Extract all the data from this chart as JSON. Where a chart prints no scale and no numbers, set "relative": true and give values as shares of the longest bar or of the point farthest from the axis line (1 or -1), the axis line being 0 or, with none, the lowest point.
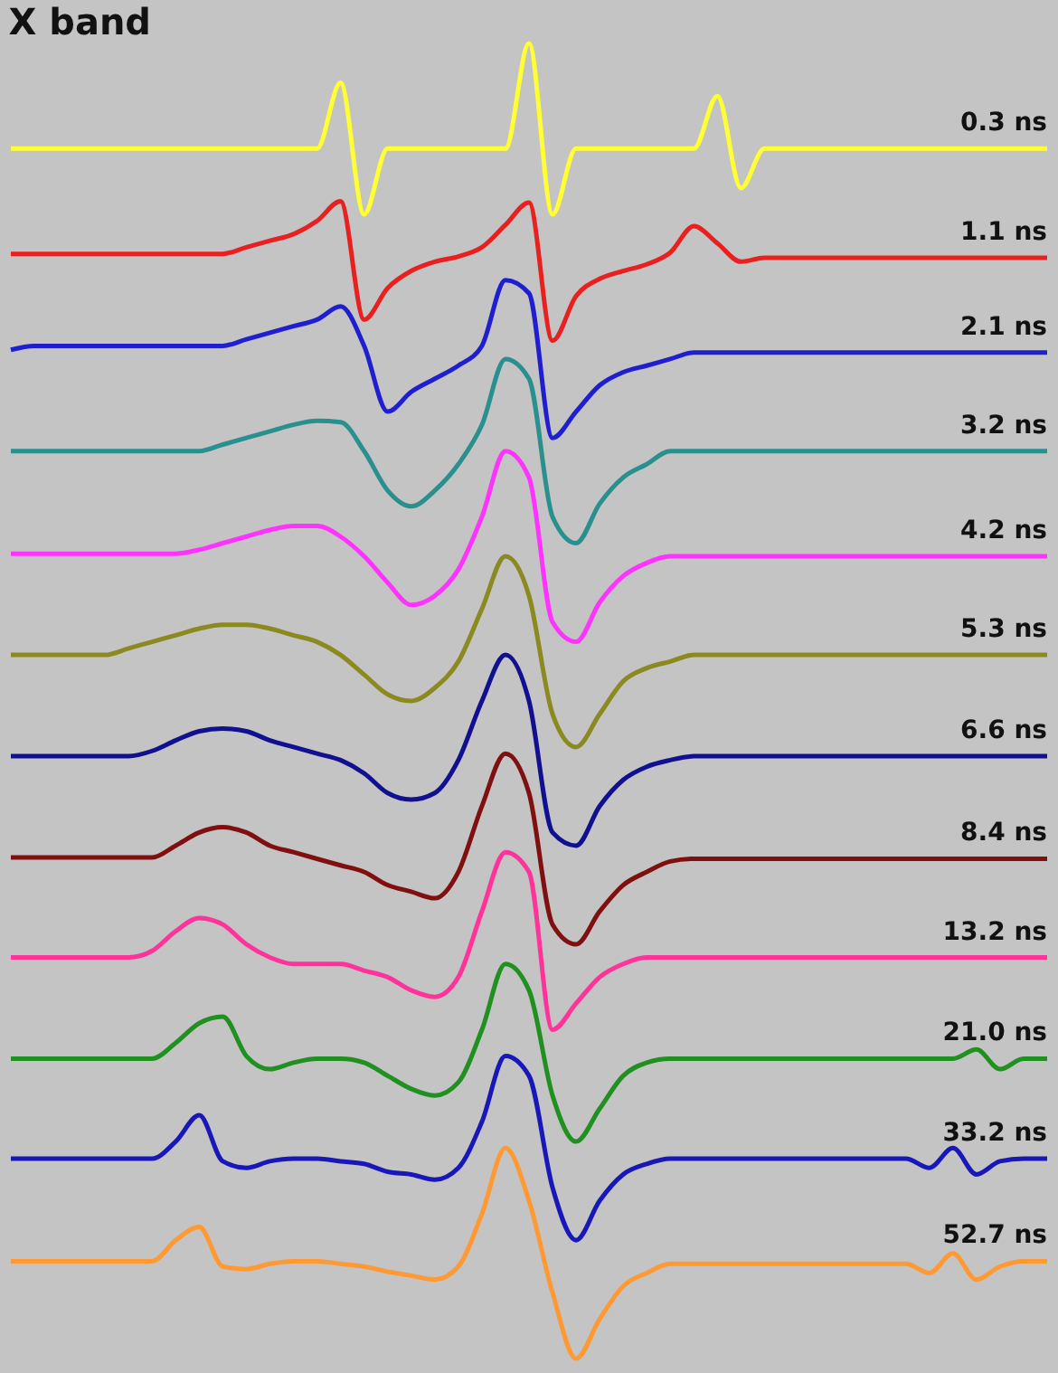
{
  "chart_data": {
    "type": "line",
    "title": "X band",
    "relative": true,
    "categories": [
      null,
      null,
      null,
      null,
      null,
      null,
      null,
      null,
      null,
      null,
      null,
      null,
      null,
      null,
      null,
      null,
      null,
      null,
      null,
      null,
      null,
      null,
      null,
      null,
      null,
      null,
      null,
      null,
      null,
      null,
      null,
      null,
      null,
      null,
      null,
      null,
      null,
      null,
      null,
      null,
      null,
      null,
      null,
      null,
      null
    ],
    "series": [
      {
        "name": "0.3 ns",
        "color": "#ffff33",
        "values": [
          0.92,
          0.92,
          0.92,
          0.92,
          0.92,
          0.92,
          0.92,
          0.92,
          0.92,
          0.92,
          0.92,
          0.92,
          0.92,
          0.92,
          0.97,
          0.87,
          0.92,
          0.92,
          0.92,
          0.92,
          0.92,
          0.92,
          1.0,
          0.87,
          0.92,
          0.92,
          0.92,
          0.92,
          0.92,
          0.92,
          0.96,
          0.89,
          0.92,
          0.92,
          0.92,
          0.92,
          0.92,
          0.92,
          0.92,
          0.92,
          0.92,
          0.92,
          0.92,
          0.92,
          0.92
        ]
      },
      {
        "name": "1.1 ns",
        "color": "#e82020",
        "values": [
          0.84,
          0.84,
          0.84,
          0.84,
          0.84,
          0.84,
          0.84,
          0.84,
          0.84,
          0.84,
          0.845,
          0.85,
          0.855,
          0.865,
          0.88,
          0.79,
          0.814,
          0.827,
          0.834,
          0.838,
          0.845,
          0.862,
          0.879,
          0.774,
          0.808,
          0.821,
          0.827,
          0.832,
          0.841,
          0.861,
          0.848,
          0.834,
          0.837,
          0.837,
          0.837,
          0.837,
          0.837,
          0.837,
          0.837,
          0.837,
          0.837,
          0.837,
          0.837,
          0.837,
          0.837
        ]
      },
      {
        "name": "2.1 ns",
        "color": "#1f1fd0",
        "values": [
          0.767,
          0.77,
          0.77,
          0.77,
          0.77,
          0.77,
          0.77,
          0.77,
          0.77,
          0.77,
          0.775,
          0.78,
          0.785,
          0.79,
          0.8,
          0.77,
          0.72,
          0.735,
          0.745,
          0.755,
          0.77,
          0.82,
          0.81,
          0.7,
          0.72,
          0.74,
          0.75,
          0.755,
          0.76,
          0.765,
          0.765,
          0.765,
          0.765,
          0.765,
          0.765,
          0.765,
          0.765,
          0.765,
          0.765,
          0.765,
          0.765,
          0.765,
          0.765,
          0.765,
          0.765
        ]
      },
      {
        "name": "3.2 ns",
        "color": "#2a8f8f",
        "values": [
          0.69,
          0.69,
          0.69,
          0.69,
          0.69,
          0.69,
          0.69,
          0.69,
          0.69,
          0.695,
          0.7,
          0.705,
          0.71,
          0.713,
          0.712,
          0.69,
          0.66,
          0.648,
          0.66,
          0.68,
          0.71,
          0.76,
          0.745,
          0.64,
          0.62,
          0.65,
          0.67,
          0.68,
          0.69,
          0.69,
          0.69,
          0.69,
          0.69,
          0.69,
          0.69,
          0.69,
          0.69,
          0.69,
          0.69,
          0.69,
          0.69,
          0.69,
          0.69,
          0.69,
          0.69
        ]
      },
      {
        "name": "4.2 ns",
        "color": "#ff33ff",
        "values": [
          0.612,
          0.612,
          0.612,
          0.612,
          0.612,
          0.612,
          0.612,
          0.612,
          0.615,
          0.62,
          0.625,
          0.63,
          0.633,
          0.633,
          0.625,
          0.61,
          0.59,
          0.573,
          0.58,
          0.6,
          0.64,
          0.69,
          0.67,
          0.56,
          0.545,
          0.575,
          0.595,
          0.605,
          0.61,
          0.61,
          0.61,
          0.61,
          0.61,
          0.61,
          0.61,
          0.61,
          0.61,
          0.61,
          0.61,
          0.61,
          0.61,
          0.61,
          0.61,
          0.61,
          0.61
        ]
      },
      {
        "name": "5.3 ns",
        "color": "#8a8a20",
        "values": [
          0.535,
          0.535,
          0.535,
          0.535,
          0.535,
          0.54,
          0.545,
          0.55,
          0.555,
          0.558,
          0.558,
          0.555,
          0.55,
          0.545,
          0.535,
          0.52,
          0.505,
          0.5,
          0.51,
          0.53,
          0.57,
          0.61,
          0.58,
          0.49,
          0.465,
          0.49,
          0.515,
          0.525,
          0.53,
          0.535,
          0.535,
          0.535,
          0.535,
          0.535,
          0.535,
          0.535,
          0.535,
          0.535,
          0.535,
          0.535,
          0.535,
          0.535,
          0.535,
          0.535,
          0.535
        ]
      },
      {
        "name": "6.6 ns",
        "color": "#101090",
        "values": [
          0.458,
          0.458,
          0.458,
          0.458,
          0.458,
          0.458,
          0.462,
          0.47,
          0.477,
          0.479,
          0.477,
          0.47,
          0.465,
          0.46,
          0.455,
          0.445,
          0.43,
          0.425,
          0.43,
          0.455,
          0.5,
          0.535,
          0.5,
          0.4,
          0.39,
          0.42,
          0.44,
          0.45,
          0.455,
          0.458,
          0.458,
          0.458,
          0.458,
          0.458,
          0.458,
          0.458,
          0.458,
          0.458,
          0.458,
          0.458,
          0.458,
          0.458,
          0.458,
          0.458,
          0.458
        ]
      },
      {
        "name": "8.4 ns",
        "color": "#801010",
        "values": [
          0.381,
          0.381,
          0.381,
          0.381,
          0.381,
          0.381,
          0.381,
          0.39,
          0.4,
          0.404,
          0.4,
          0.39,
          0.385,
          0.38,
          0.375,
          0.37,
          0.36,
          0.355,
          0.35,
          0.37,
          0.42,
          0.46,
          0.43,
          0.33,
          0.315,
          0.34,
          0.36,
          0.37,
          0.378,
          0.38,
          0.38,
          0.38,
          0.38,
          0.38,
          0.38,
          0.38,
          0.38,
          0.38,
          0.38,
          0.38,
          0.38,
          0.38,
          0.38,
          0.38,
          0.38
        ]
      },
      {
        "name": "13.2 ns",
        "color": "#ff3399",
        "values": [
          0.305,
          0.305,
          0.305,
          0.305,
          0.305,
          0.305,
          0.31,
          0.325,
          0.335,
          0.33,
          0.315,
          0.305,
          0.3,
          0.3,
          0.3,
          0.295,
          0.29,
          0.28,
          0.275,
          0.29,
          0.34,
          0.385,
          0.37,
          0.25,
          0.27,
          0.29,
          0.3,
          0.305,
          0.305,
          0.305,
          0.305,
          0.305,
          0.305,
          0.305,
          0.305,
          0.305,
          0.305,
          0.305,
          0.305,
          0.305,
          0.305,
          0.305,
          0.305,
          0.305,
          0.305
        ]
      },
      {
        "name": "21.0 ns",
        "color": "#209020",
        "values": [
          0.228,
          0.228,
          0.228,
          0.228,
          0.228,
          0.228,
          0.228,
          0.24,
          0.255,
          0.26,
          0.23,
          0.22,
          0.225,
          0.228,
          0.228,
          0.225,
          0.215,
          0.205,
          0.2,
          0.21,
          0.25,
          0.3,
          0.28,
          0.2,
          0.165,
          0.19,
          0.215,
          0.225,
          0.228,
          0.228,
          0.228,
          0.228,
          0.228,
          0.228,
          0.228,
          0.228,
          0.228,
          0.228,
          0.228,
          0.228,
          0.228,
          0.235,
          0.22,
          0.228,
          0.228
        ]
      },
      {
        "name": "33.2 ns",
        "color": "#1818b8",
        "values": [
          0.152,
          0.152,
          0.152,
          0.152,
          0.152,
          0.152,
          0.152,
          0.165,
          0.185,
          0.15,
          0.145,
          0.15,
          0.152,
          0.152,
          0.15,
          0.148,
          0.142,
          0.14,
          0.136,
          0.145,
          0.18,
          0.23,
          0.215,
          0.13,
          0.09,
          0.12,
          0.14,
          0.148,
          0.152,
          0.152,
          0.152,
          0.152,
          0.152,
          0.152,
          0.152,
          0.152,
          0.152,
          0.152,
          0.152,
          0.145,
          0.16,
          0.14,
          0.15,
          0.152,
          0.152
        ]
      },
      {
        "name": "52.7 ns",
        "color": "#ff9933",
        "values": [
          0.074,
          0.074,
          0.074,
          0.074,
          0.074,
          0.074,
          0.074,
          0.09,
          0.1,
          0.07,
          0.068,
          0.072,
          0.074,
          0.074,
          0.072,
          0.07,
          0.066,
          0.063,
          0.06,
          0.07,
          0.11,
          0.16,
          0.12,
          0.05,
          0.0,
          0.03,
          0.055,
          0.065,
          0.072,
          0.072,
          0.072,
          0.072,
          0.072,
          0.072,
          0.072,
          0.072,
          0.072,
          0.072,
          0.072,
          0.065,
          0.08,
          0.06,
          0.07,
          0.074,
          0.074
        ]
      }
    ]
  }
}
